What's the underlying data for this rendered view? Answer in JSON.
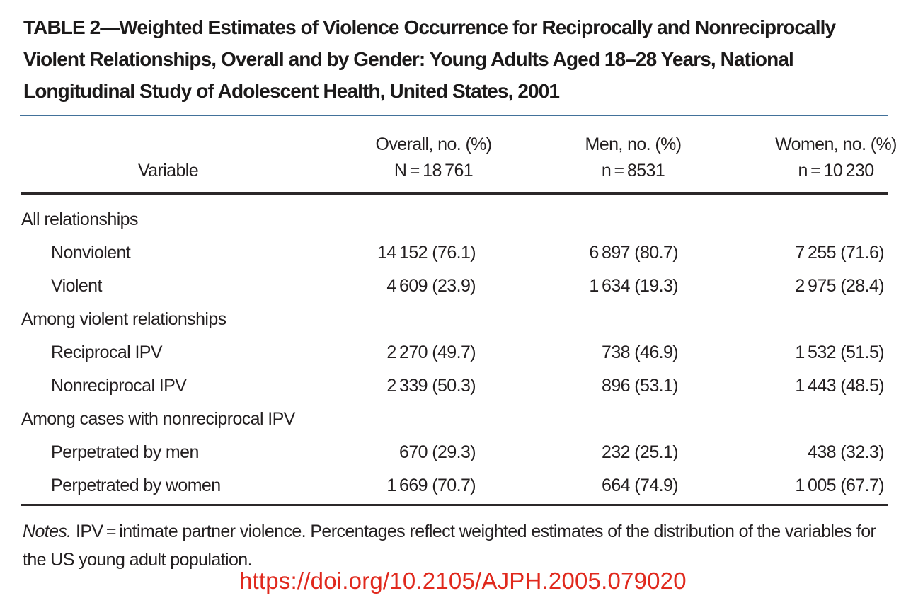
{
  "title": "TABLE 2—Weighted Estimates of Violence Occurrence for Reciprocally and Nonreciprocally Violent Relationships, Overall and by Gender: Young Adults Aged 18–28 Years, National Longitudinal Study of Adolescent Health, United States, 2001",
  "table": {
    "variable_header": "Variable",
    "columns": [
      {
        "label": "Overall, no. (%)",
        "n": "N = 18 761"
      },
      {
        "label": "Men, no. (%)",
        "n": "n = 8531"
      },
      {
        "label": "Women, no. (%)",
        "n": "n = 10 230"
      }
    ],
    "rows": [
      {
        "type": "group",
        "label": "All relationships"
      },
      {
        "type": "item",
        "label": "Nonviolent",
        "overall": "14 152 (76.1)",
        "men": "6 897 (80.7)",
        "women": "7 255 (71.6)"
      },
      {
        "type": "item",
        "label": "Violent",
        "overall": "4 609 (23.9)",
        "men": "1 634 (19.3)",
        "women": "2 975 (28.4)"
      },
      {
        "type": "group",
        "label": "Among violent relationships"
      },
      {
        "type": "item",
        "label": "Reciprocal IPV",
        "overall": "2 270 (49.7)",
        "men": "738 (46.9)",
        "women": "1 532 (51.5)"
      },
      {
        "type": "item",
        "label": "Nonreciprocal IPV",
        "overall": "2 339 (50.3)",
        "men": "896 (53.1)",
        "women": "1 443 (48.5)"
      },
      {
        "type": "group",
        "label": "Among cases with nonreciprocal IPV"
      },
      {
        "type": "item",
        "label": "Perpetrated by men",
        "overall": "670 (29.3)",
        "men": "232 (25.1)",
        "women": "438 (32.3)"
      },
      {
        "type": "item",
        "label": "Perpetrated by women",
        "overall": "1 669 (70.7)",
        "men": "664 (74.9)",
        "women": "1 005 (67.7)"
      }
    ]
  },
  "notes": {
    "prefix": "Notes.",
    "text": " IPV = intimate partner violence. Percentages reflect weighted estimates of the distribution of the variables for the US young adult population."
  },
  "doi": "https://doi.org/10.2105/AJPH.2005.079020",
  "colors": {
    "rule_blue": "#42719a",
    "rule_black": "#2b2829",
    "text": "#231f20",
    "doi_red": "#e0291d"
  }
}
